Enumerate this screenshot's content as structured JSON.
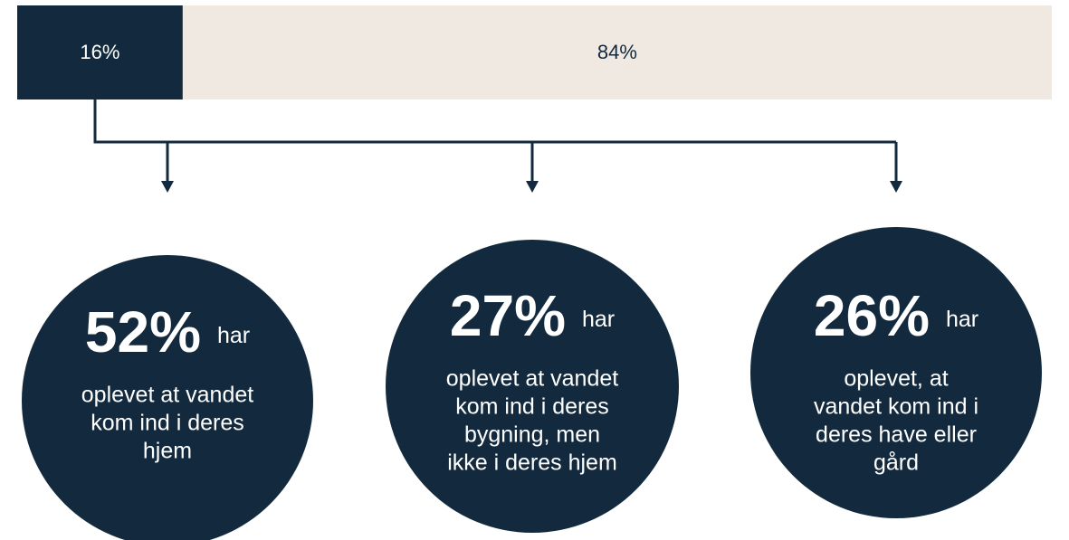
{
  "bar": {
    "segments": [
      {
        "value": 16,
        "label": "16%",
        "color": "#132a3e",
        "text_color": "#ffffff"
      },
      {
        "value": 84,
        "label": "84%",
        "color": "#efe9e1",
        "text_color": "#132a3e"
      }
    ]
  },
  "circles": [
    {
      "big": "52%",
      "small": "har",
      "lines": [
        "oplevet at vandet",
        "kom ind i deres",
        "hjem"
      ]
    },
    {
      "big": "27%",
      "small": "har",
      "lines": [
        "oplevet at vandet",
        "kom ind i deres",
        "bygning, men",
        "ikke i deres hjem"
      ]
    },
    {
      "big": "26%",
      "small": "har",
      "lines": [
        "oplevet, at",
        "vandet kom ind i",
        "deres have eller",
        "gård"
      ]
    }
  ]
}
